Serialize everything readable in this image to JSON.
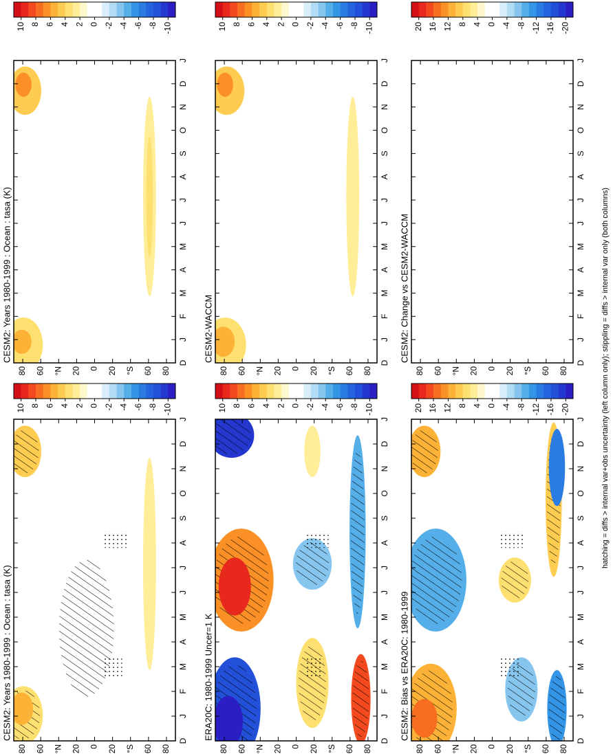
{
  "chart_data": [
    {
      "type": "contour",
      "title": "CESM2: Years 1980-1999 : Ocean : tasa (K)",
      "categories": [
        "D",
        "J",
        "F",
        "M",
        "A",
        "M",
        "J",
        "J",
        "A",
        "S",
        "O",
        "N",
        "D",
        "J"
      ],
      "ylim": [
        -90,
        90
      ],
      "yticks": [
        80,
        60,
        {
          "value": 40,
          "label": "°N"
        },
        20,
        0,
        {
          "value": -20,
          "label": "20"
        },
        {
          "value": -40,
          "label": "°S"
        },
        {
          "value": -60,
          "label": "60"
        },
        {
          "value": -80,
          "label": "80"
        }
      ],
      "colorbar": {
        "lim": [
          -11,
          11
        ],
        "ticks": [
          10,
          8,
          6,
          4,
          2,
          0,
          -2,
          -4,
          -6,
          -8,
          -10
        ]
      }
    },
    {
      "type": "contour",
      "title": "ERA20C: 1980-1999 Uncer=1 K",
      "categories": [
        "D",
        "J",
        "F",
        "M",
        "A",
        "M",
        "J",
        "J",
        "A",
        "S",
        "O",
        "N",
        "D",
        "J"
      ],
      "ylim": [
        -90,
        90
      ],
      "yticks": [
        80,
        60,
        {
          "value": 40,
          "label": "°N"
        },
        20,
        0,
        {
          "value": -20,
          "label": "20"
        },
        {
          "value": -40,
          "label": "°S"
        },
        {
          "value": -60,
          "label": "60"
        },
        {
          "value": -80,
          "label": "80"
        }
      ],
      "colorbar": {
        "lim": [
          -11,
          11
        ],
        "ticks": [
          10,
          8,
          6,
          4,
          2,
          0,
          -2,
          -4,
          -6,
          -8,
          -10
        ]
      }
    },
    {
      "type": "contour",
      "title": "CESM2: Bias vs ERA20C: 1980-1999",
      "categories": [
        "D",
        "J",
        "F",
        "M",
        "A",
        "M",
        "J",
        "J",
        "A",
        "S",
        "O",
        "N",
        "D",
        "J"
      ],
      "ylim": [
        -90,
        90
      ],
      "yticks": [
        80,
        60,
        {
          "value": 40,
          "label": "°N"
        },
        20,
        0,
        {
          "value": -20,
          "label": "20"
        },
        {
          "value": -40,
          "label": "°S"
        },
        {
          "value": -60,
          "label": "60"
        },
        {
          "value": -80,
          "label": "80"
        }
      ],
      "colorbar": {
        "lim": [
          -22,
          22
        ],
        "ticks": [
          20,
          16,
          12,
          8,
          4,
          0,
          -4,
          -8,
          -12,
          -16,
          -20
        ]
      }
    },
    {
      "type": "contour",
      "title": "CESM2: Years 1980-1999 : Ocean : tasa (K)",
      "categories": [
        "D",
        "J",
        "F",
        "M",
        "A",
        "M",
        "J",
        "J",
        "A",
        "S",
        "O",
        "N",
        "D",
        "J"
      ],
      "ylim": [
        -90,
        90
      ],
      "yticks": [
        80,
        60,
        {
          "value": 40,
          "label": "°N"
        },
        20,
        0,
        {
          "value": -20,
          "label": "20"
        },
        {
          "value": -40,
          "label": "°S"
        },
        {
          "value": -60,
          "label": "60"
        },
        {
          "value": -80,
          "label": "80"
        }
      ],
      "colorbar": {
        "lim": [
          -11,
          11
        ],
        "ticks": [
          10,
          8,
          6,
          4,
          2,
          0,
          -2,
          -4,
          -6,
          -8,
          -10
        ]
      }
    },
    {
      "type": "contour",
      "title": "CESM2-WACCM",
      "categories": [
        "D",
        "J",
        "F",
        "M",
        "A",
        "M",
        "J",
        "J",
        "A",
        "S",
        "O",
        "N",
        "D",
        "J"
      ],
      "ylim": [
        -90,
        90
      ],
      "yticks": [
        80,
        60,
        {
          "value": 40,
          "label": "°N"
        },
        20,
        0,
        {
          "value": -20,
          "label": "20"
        },
        {
          "value": -40,
          "label": "°S"
        },
        {
          "value": -60,
          "label": "60"
        },
        {
          "value": -80,
          "label": "80"
        }
      ],
      "colorbar": {
        "lim": [
          -11,
          11
        ],
        "ticks": [
          10,
          8,
          6,
          4,
          2,
          0,
          -2,
          -4,
          -6,
          -8,
          -10
        ]
      }
    },
    {
      "type": "contour",
      "title": "CESM2: Change vs CESM2-WACCM",
      "categories": [
        "D",
        "J",
        "F",
        "M",
        "A",
        "M",
        "J",
        "J",
        "A",
        "S",
        "O",
        "N",
        "D",
        "J"
      ],
      "ylim": [
        -90,
        90
      ],
      "yticks": [
        80,
        60,
        {
          "value": 40,
          "label": "°N"
        },
        20,
        0,
        {
          "value": -20,
          "label": "20"
        },
        {
          "value": -40,
          "label": "°S"
        },
        {
          "value": -60,
          "label": "60"
        },
        {
          "value": -80,
          "label": "80"
        }
      ],
      "colorbar": {
        "lim": [
          -22,
          22
        ],
        "ticks": [
          20,
          16,
          12,
          8,
          4,
          0,
          -4,
          -8,
          -12,
          -16,
          -20
        ]
      }
    }
  ],
  "colors": [
    "#d40f18",
    "#e8281c",
    "#f24a1e",
    "#f76e20",
    "#fa9026",
    "#fcb236",
    "#fdcc50",
    "#fee070",
    "#ffed98",
    "#fff8cc",
    "#ffffff",
    "#ffffff",
    "#d8eefa",
    "#b2dcf4",
    "#86c6ee",
    "#56aee9",
    "#3494e6",
    "#2a7ce3",
    "#2464de",
    "#2250d8",
    "#2438d0",
    "#2a1ec4"
  ],
  "footnote": "hatching = diffs > internal var+obs uncertainty (left column only); stippling = diffs > internal var only (both columns)"
}
